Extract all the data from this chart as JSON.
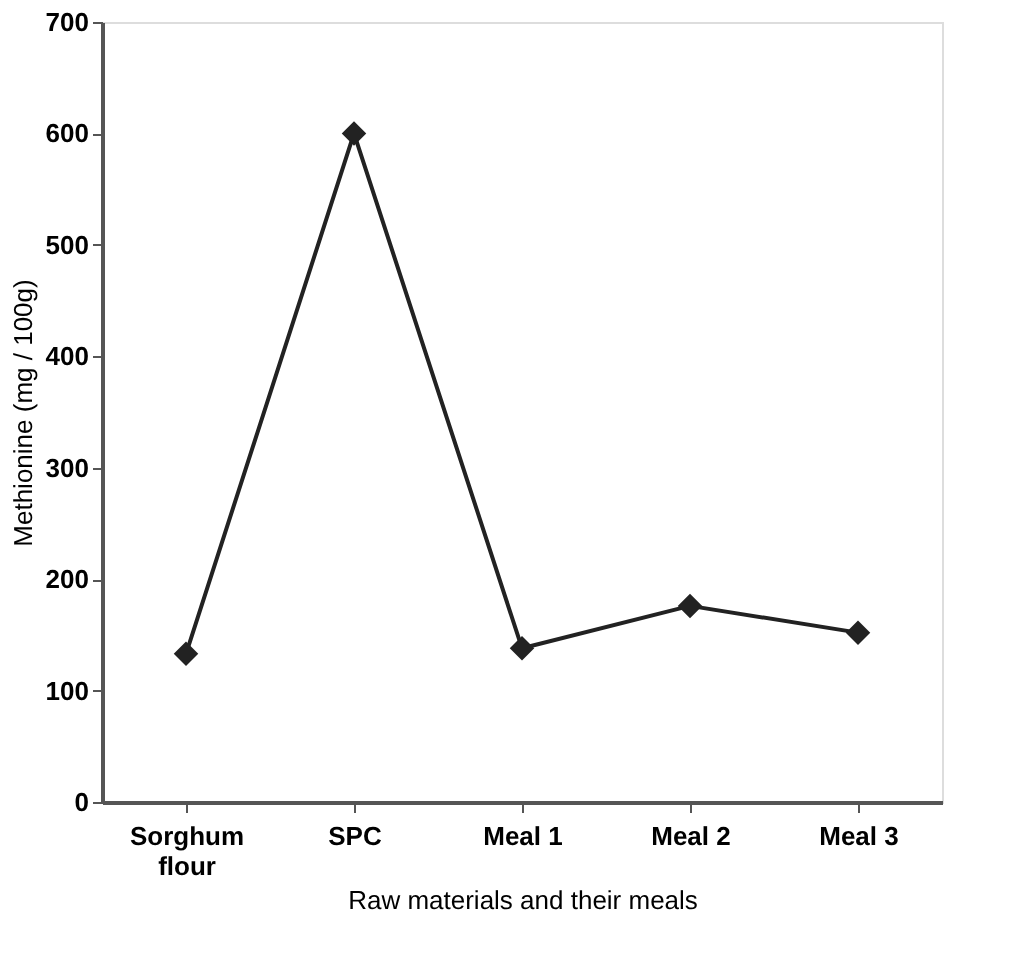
{
  "chart_data": {
    "type": "line",
    "xlabel": "Raw materials and their meals",
    "ylabel": "Methionine (mg / 100g)",
    "categories": [
      "Sorghum flour",
      "SPC",
      "Meal 1",
      "Meal 2",
      "Meal 3"
    ],
    "series": [
      {
        "color": "#222222",
        "values": [
          133,
          600,
          138,
          176,
          152
        ]
      }
    ],
    "ylim": [
      0,
      700
    ],
    "yticks": [
      0,
      100,
      200,
      300,
      400,
      500,
      600,
      700
    ],
    "grid": false,
    "marker": "diamond",
    "line_style": "solid"
  }
}
